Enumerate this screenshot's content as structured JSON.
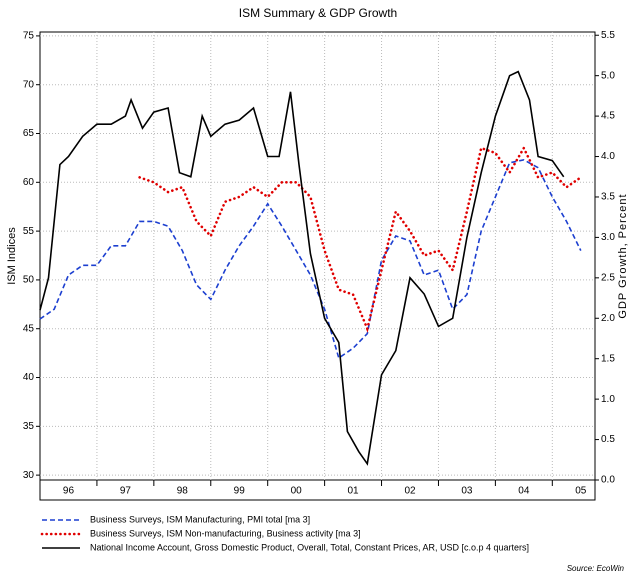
{
  "chart_data": {
    "type": "line",
    "title": "ISM Summary & GDP Growth",
    "y_label": "ISM Indices",
    "y2_label": "GDP Growth, Percent",
    "source": "Source: EcoWin",
    "xlim": [
      1996,
      2005.75
    ],
    "xticks": [
      {
        "value": 1996.5,
        "label": "96"
      },
      {
        "value": 1997.5,
        "label": "97"
      },
      {
        "value": 1998.5,
        "label": "98"
      },
      {
        "value": 1999.5,
        "label": "99"
      },
      {
        "value": 2000.5,
        "label": "00"
      },
      {
        "value": 2001.5,
        "label": "01"
      },
      {
        "value": 2002.5,
        "label": "02"
      },
      {
        "value": 2003.5,
        "label": "03"
      },
      {
        "value": 2004.5,
        "label": "04"
      },
      {
        "value": 2005.5,
        "label": "05"
      }
    ],
    "ylim": [
      29.5,
      75.4
    ],
    "yticks": [
      30,
      35,
      40,
      45,
      50,
      55,
      60,
      65,
      70,
      75
    ],
    "y2lim": [
      0,
      5.54
    ],
    "y2ticks": [
      {
        "value": 0,
        "label": "0.0"
      },
      0.5,
      {
        "value": 1,
        "label": "1.0"
      },
      1.5,
      {
        "value": 2,
        "label": "2.0"
      },
      2.5,
      {
        "value": 3,
        "label": "3.0"
      },
      3.5,
      {
        "value": 4,
        "label": "4.0"
      },
      4.5,
      {
        "value": 5,
        "label": "5.0"
      },
      5.5
    ],
    "grid": true,
    "legend": "bottom",
    "series": [
      {
        "name": "Business Surveys, ISM Manufacturing, PMI total [ma 3]",
        "color": "#1c3fd0",
        "style": "dashed",
        "x": [
          1996,
          1996.25,
          1996.5,
          1996.75,
          1997,
          1997.25,
          1997.5,
          1997.75,
          1998,
          1998.25,
          1998.5,
          1998.75,
          1999,
          1999.25,
          1999.5,
          1999.75,
          2000,
          2000.25,
          2000.5,
          2000.75,
          2001,
          2001.25,
          2001.5,
          2001.75,
          2002,
          2002.25,
          2002.5,
          2002.75,
          2003,
          2003.25,
          2003.5,
          2003.75,
          2004,
          2004.25,
          2004.5,
          2004.75,
          2005,
          2005.25,
          2005.5
        ],
        "values": [
          46,
          47,
          50.5,
          51.5,
          51.5,
          53.5,
          53.5,
          56,
          56,
          55.5,
          53,
          49.5,
          48,
          51,
          53.5,
          55.5,
          57.8,
          55.5,
          53,
          50.5,
          47,
          42,
          43,
          44.5,
          52,
          54.5,
          54,
          50.5,
          51,
          47,
          48.5,
          55,
          58.5,
          62,
          62.3,
          61.5,
          58.5,
          56,
          53
        ]
      },
      {
        "name": "Business Surveys, ISM Non-manufacturing, Business activity [ma 3]",
        "color": "#e00000",
        "style": "dotted",
        "x": [
          1997.75,
          1998,
          1998.25,
          1998.5,
          1998.75,
          1999,
          1999.25,
          1999.5,
          1999.75,
          2000,
          2000.25,
          2000.5,
          2000.75,
          2001,
          2001.25,
          2001.5,
          2001.75,
          2002,
          2002.25,
          2002.5,
          2002.75,
          2003,
          2003.25,
          2003.5,
          2003.75,
          2004,
          2004.25,
          2004.5,
          2004.75,
          2005,
          2005.25,
          2005.5
        ],
        "values": [
          60.5,
          60,
          59,
          59.5,
          56,
          54.5,
          58,
          58.5,
          59.5,
          58.5,
          60,
          60,
          58.5,
          53,
          49,
          48.5,
          45,
          51,
          57,
          55,
          52.5,
          53,
          51,
          57,
          63.5,
          63,
          61,
          63.5,
          60.5,
          61,
          59.5,
          60.5
        ]
      },
      {
        "name": "National Income Account, Gross Domestic Product, Overall, Total, Constant Prices, AR, USD [c.o.p 4 quarters]",
        "color": "#000000",
        "style": "solid",
        "axis": "y2",
        "x": [
          1996,
          1996.15,
          1996.35,
          1996.5,
          1996.75,
          1997,
          1997.25,
          1997.5,
          1997.6,
          1997.8,
          1998,
          1998.25,
          1998.45,
          1998.65,
          1998.85,
          1999,
          1999.25,
          1999.5,
          1999.75,
          2000,
          2000.2,
          2000.4,
          2000.55,
          2000.75,
          2001,
          2001.25,
          2001.4,
          2001.6,
          2001.75,
          2002,
          2002.25,
          2002.5,
          2002.75,
          2003,
          2003.25,
          2003.5,
          2003.75,
          2004,
          2004.25,
          2004.4,
          2004.6,
          2004.75,
          2005,
          2005.2
        ],
        "values": [
          2.1,
          2.5,
          3.9,
          4.0,
          4.25,
          4.4,
          4.4,
          4.5,
          4.7,
          4.35,
          4.55,
          4.6,
          3.8,
          3.75,
          4.5,
          4.25,
          4.4,
          4.45,
          4.6,
          4.0,
          4.0,
          4.8,
          3.9,
          2.8,
          2.0,
          1.7,
          0.6,
          0.35,
          0.2,
          1.3,
          1.6,
          2.5,
          2.3,
          1.9,
          2.0,
          3.0,
          3.8,
          4.5,
          5.0,
          5.05,
          4.7,
          4.0,
          3.95,
          3.75
        ]
      }
    ]
  }
}
